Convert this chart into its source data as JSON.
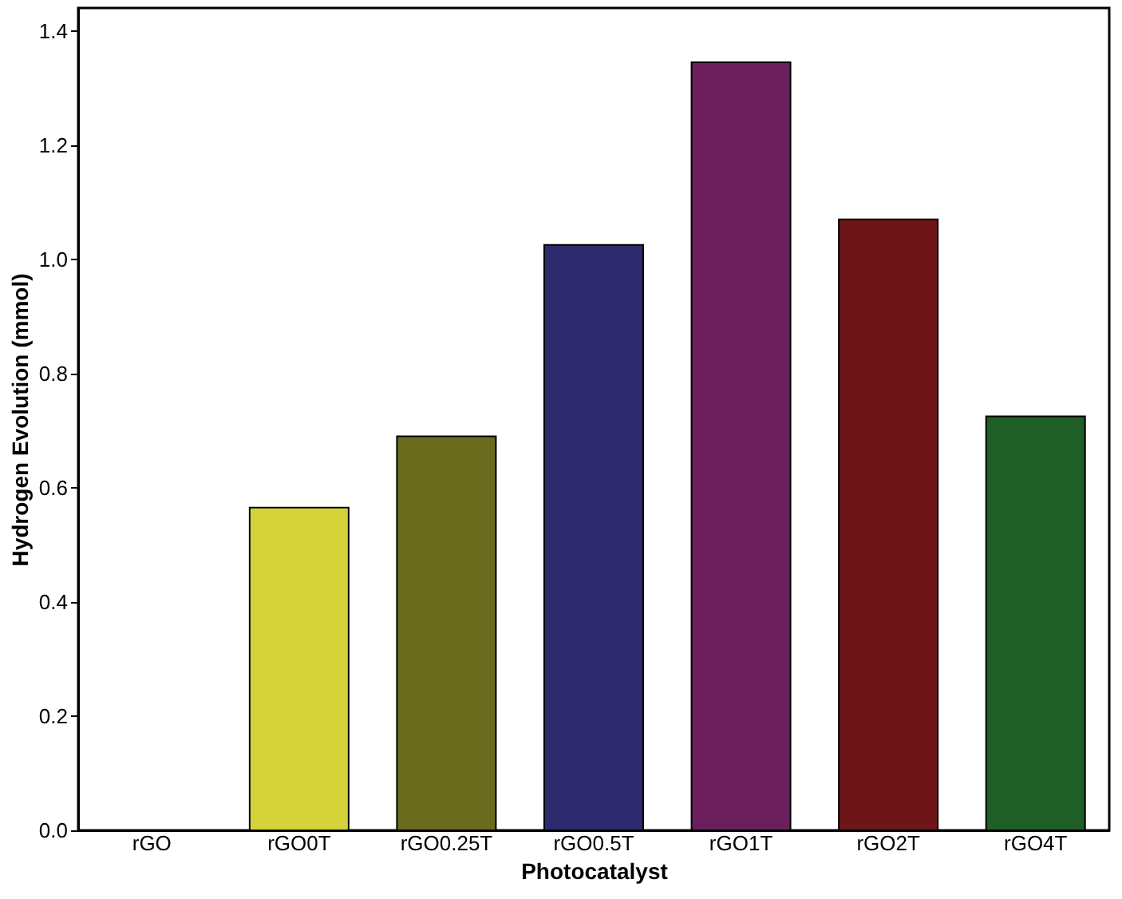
{
  "chart_data": {
    "type": "bar",
    "xlabel": "Photocatalyst",
    "ylabel": "Hydrogen Evolution (mmol)",
    "categories": [
      "rGO",
      "rGO0T",
      "rGO0.25T",
      "rGO0.5T",
      "rGO1T",
      "rGO2T",
      "rGO4T"
    ],
    "values": [
      null,
      0.565,
      0.69,
      1.025,
      1.345,
      1.07,
      0.725
    ],
    "colors": [
      null,
      "#d4d43a",
      "#6b6b1e",
      "#2e2a6e",
      "#6a1f5c",
      "#6e1518",
      "#1f5e25"
    ],
    "ylim": [
      0,
      1.44
    ],
    "yticks": [
      {
        "value": 0,
        "label": "0.0"
      },
      0.2,
      0.4,
      0.6,
      0.8,
      {
        "value": 1,
        "label": "1.0"
      },
      1.2,
      1.4
    ],
    "grid": false,
    "legend": false
  }
}
